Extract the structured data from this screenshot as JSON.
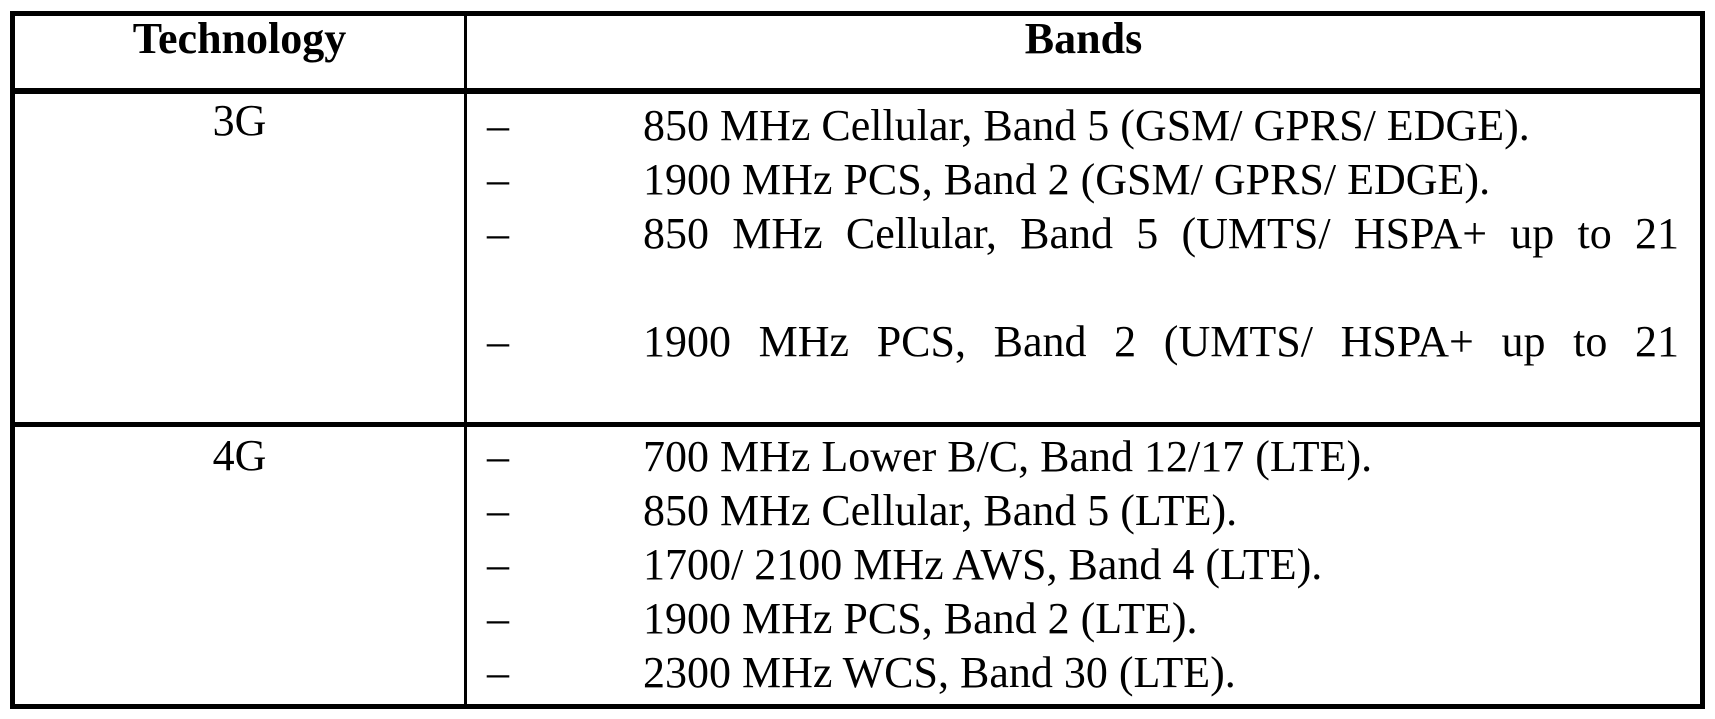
{
  "table": {
    "header": {
      "technology": "Technology",
      "bands": "Bands"
    },
    "rows": [
      {
        "technology": "3G",
        "bands": [
          {
            "dash": "–",
            "text": "850 MHz Cellular, Band 5 (GSM/ GPRS/ EDGE).",
            "justified": false
          },
          {
            "dash": "–",
            "text": "1900 MHz PCS, Band 2 (GSM/ GPRS/ EDGE).",
            "justified": false
          },
          {
            "dash": "–",
            "text": "850 MHz Cellular, Band 5 (UMTS/ HSPA+ up to 21",
            "justified": true
          },
          {
            "dash": "",
            "text": "",
            "justified": false,
            "blank": true
          },
          {
            "dash": "–",
            "text": "1900 MHz PCS, Band 2 (UMTS/ HSPA+ up to 21",
            "justified": true
          }
        ]
      },
      {
        "technology": "4G",
        "bands": [
          {
            "dash": "–",
            "text": "700 MHz Lower B/C, Band 12/17 (LTE).",
            "justified": false
          },
          {
            "dash": "–",
            "text": "850 MHz Cellular, Band 5 (LTE).",
            "justified": false
          },
          {
            "dash": "–",
            "text": "1700/ 2100 MHz AWS, Band 4 (LTE).",
            "justified": false
          },
          {
            "dash": "–",
            "text": "1900 MHz PCS, Band 2 (LTE).",
            "justified": false
          },
          {
            "dash": "–",
            "text": "2300 MHz WCS, Band 30 (LTE).",
            "justified": false
          }
        ]
      }
    ]
  },
  "colors": {
    "border": "#000000",
    "text": "#000000",
    "background": "#ffffff"
  }
}
